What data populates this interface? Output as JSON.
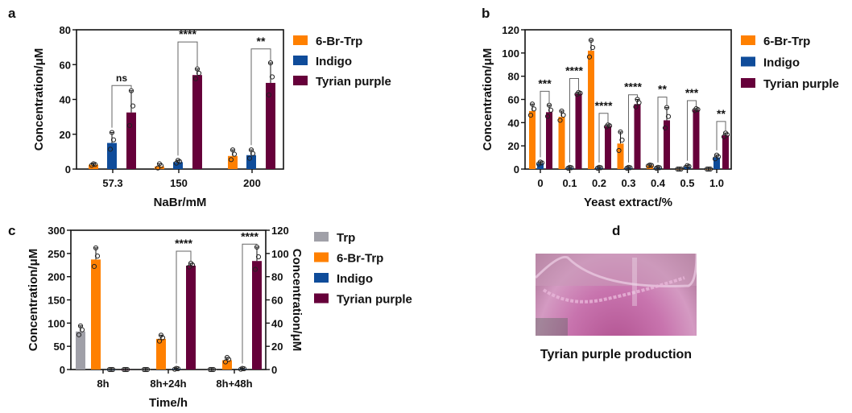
{
  "chart_data": [
    {
      "panel": "a",
      "type": "bar",
      "xlabel": "NaBr/mM",
      "ylabel": "Concentration/μM",
      "ylim": [
        0,
        80
      ],
      "yticks": [
        0,
        20,
        40,
        60,
        80
      ],
      "categories": [
        "57.3",
        "150",
        "200"
      ],
      "series": [
        {
          "name": "6-Br-Trp",
          "color": "#FF8000",
          "values": [
            2.5,
            1.5,
            7.5
          ],
          "sd": [
            0.5,
            1.5,
            3.5
          ]
        },
        {
          "name": "Indigo",
          "color": "#0F4C9A",
          "values": [
            15,
            4,
            8
          ],
          "sd": [
            6,
            1,
            3
          ]
        },
        {
          "name": "Tyrian purple",
          "color": "#66003A",
          "values": [
            32.5,
            54,
            49.5
          ],
          "sd": [
            12.5,
            3.5,
            11.5
          ]
        }
      ],
      "significance": [
        {
          "label": "ns",
          "level": 48
        },
        {
          "label": "****",
          "level": 73
        },
        {
          "label": "**",
          "level": 69
        }
      ],
      "legend": "right"
    },
    {
      "panel": "b",
      "type": "bar",
      "xlabel": "Yeast extract/%",
      "ylabel": "Concentration/μM",
      "ylim": [
        0,
        120
      ],
      "yticks": [
        0,
        20,
        40,
        60,
        80,
        100,
        120
      ],
      "categories": [
        "0",
        "0.1",
        "0.2",
        "0.3",
        "0.4",
        "0.5",
        "1.0"
      ],
      "series": [
        {
          "name": "6-Br-Trp",
          "color": "#FF8000",
          "values": [
            50,
            45,
            102,
            22,
            3,
            0,
            0
          ],
          "sd": [
            6,
            5,
            9,
            10,
            0.5,
            0,
            0
          ]
        },
        {
          "name": "Indigo",
          "color": "#0F4C9A",
          "values": [
            5,
            1,
            1,
            1,
            1,
            2,
            10
          ],
          "sd": [
            1,
            0.5,
            0.5,
            0.5,
            0.5,
            1,
            2
          ]
        },
        {
          "name": "Tyrian purple",
          "color": "#66003A",
          "values": [
            49,
            65,
            37,
            56,
            42,
            51,
            29
          ],
          "sd": [
            6,
            1,
            1,
            4,
            11,
            1,
            2
          ]
        }
      ],
      "significance": [
        {
          "label": "***",
          "level": 67
        },
        {
          "label": "****",
          "level": 78
        },
        {
          "label": "****",
          "level": 48
        },
        {
          "label": "****",
          "level": 64
        },
        {
          "label": "**",
          "level": 62
        },
        {
          "label": "***",
          "level": 59
        },
        {
          "label": "**",
          "level": 41
        }
      ],
      "legend": "right"
    },
    {
      "panel": "c",
      "type": "bar",
      "xlabel": "Time/h",
      "ylabel": "Concentration/μM",
      "ylabel_right": "Concentration/μM",
      "ylim": [
        0,
        300
      ],
      "yticks": [
        0,
        50,
        100,
        150,
        200,
        250,
        300
      ],
      "ylim_right": [
        0,
        120
      ],
      "yticks_right": [
        0,
        20,
        40,
        60,
        80,
        100,
        120
      ],
      "categories": [
        "8h",
        "8h+24h",
        "8h+48h"
      ],
      "series": [
        {
          "name": "Trp",
          "color": "#A0A0A8",
          "axis": "left",
          "values": [
            82,
            0,
            0
          ],
          "sd": [
            12,
            0,
            0
          ]
        },
        {
          "name": "6-Br-Trp",
          "color": "#FF8000",
          "axis": "left",
          "values": [
            237,
            66,
            20
          ],
          "sd": [
            25,
            8,
            6
          ]
        },
        {
          "name": "Indigo",
          "color": "#0F4C9A",
          "axis": "right",
          "values": [
            0,
            0.5,
            0.5
          ],
          "sd": [
            0,
            0.5,
            0.5
          ]
        },
        {
          "name": "Tyrian purple",
          "color": "#66003A",
          "axis": "right",
          "values": [
            0,
            89.5,
            93.5
          ],
          "sd": [
            0,
            2,
            12
          ]
        }
      ],
      "significance": [
        null,
        {
          "label": "****",
          "level": 102
        },
        {
          "label": "****",
          "level": 108
        }
      ],
      "legend": "right"
    }
  ],
  "panels": {
    "a": "a",
    "b": "b",
    "c": "c",
    "d": "d"
  },
  "photo": {
    "caption": "Tyrian purple production"
  }
}
